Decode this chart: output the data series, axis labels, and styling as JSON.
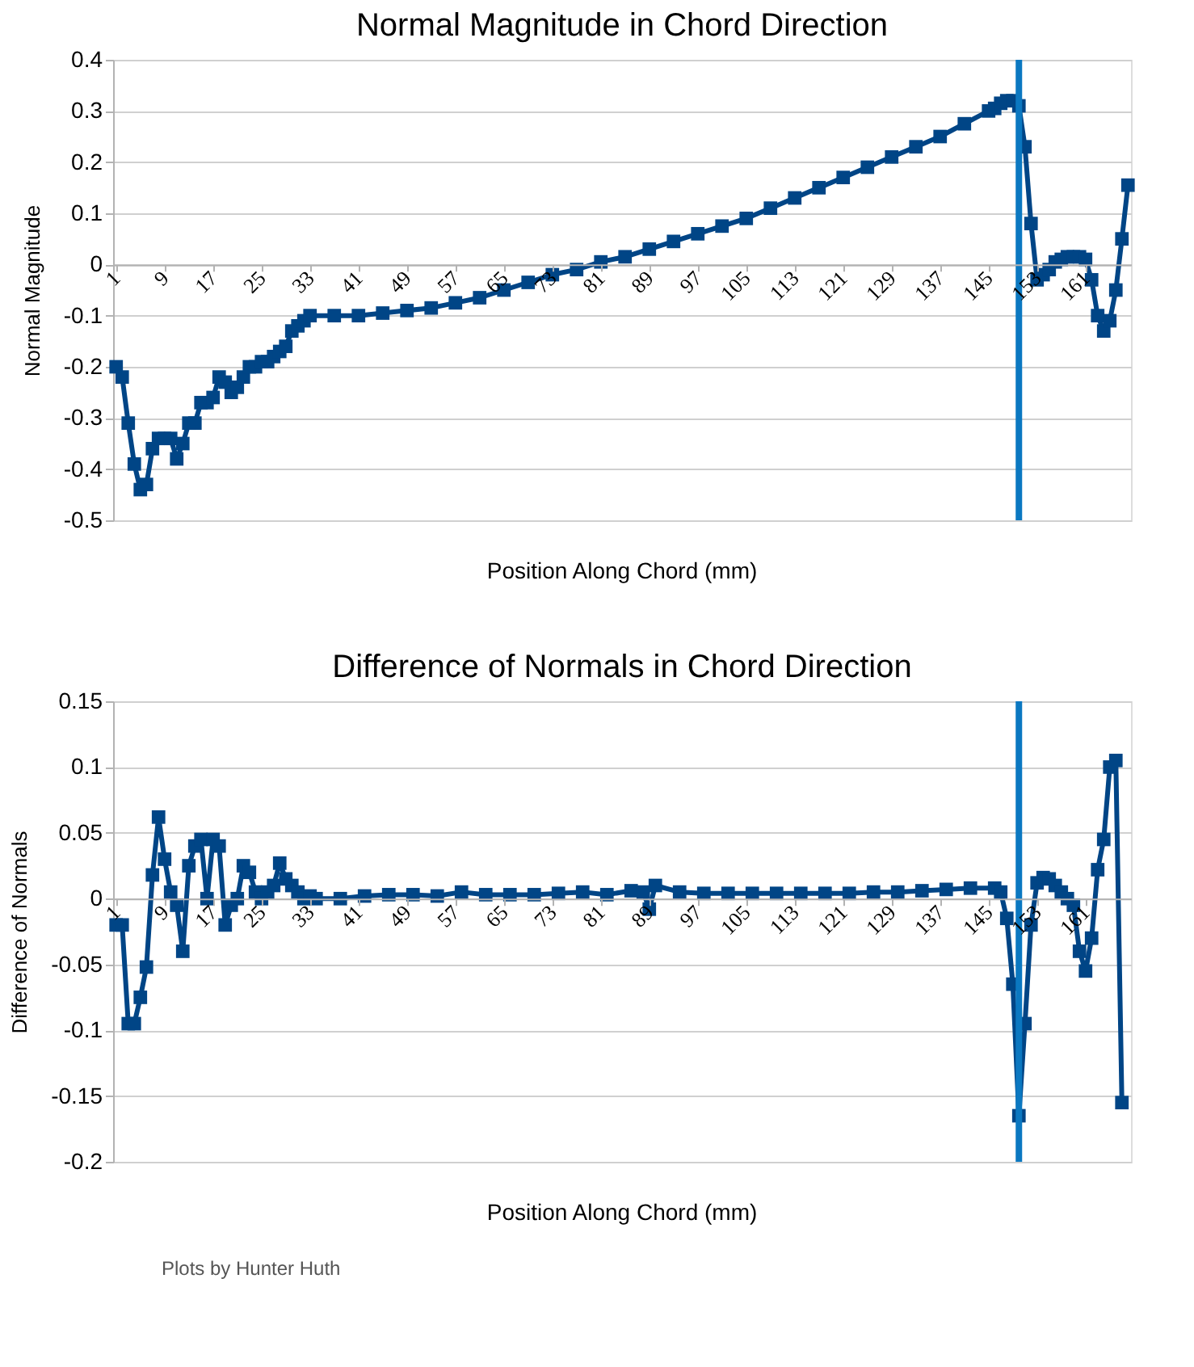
{
  "chart_data": [
    {
      "type": "line",
      "title": "Normal Magnitude in Chord Direction",
      "xlabel": "Position Along Chord (mm)",
      "ylabel": "Normal Magnitude",
      "x": [
        1,
        2,
        3,
        4,
        5,
        6,
        7,
        8,
        9,
        10,
        11,
        12,
        13,
        14,
        15,
        16,
        17,
        18,
        19,
        20,
        21,
        22,
        23,
        24,
        25,
        26,
        27,
        28,
        29,
        30,
        31,
        32,
        33,
        37,
        41,
        45,
        49,
        53,
        57,
        61,
        65,
        69,
        73,
        77,
        81,
        85,
        89,
        93,
        97,
        101,
        105,
        109,
        113,
        117,
        121,
        125,
        129,
        133,
        137,
        141,
        145,
        146,
        147,
        148,
        149,
        150,
        151,
        152,
        153,
        154,
        155,
        156,
        157,
        158,
        159,
        160,
        161,
        162,
        163,
        164,
        165,
        166,
        167,
        168
      ],
      "series": [
        {
          "color": "#004586",
          "values": [
            -0.2,
            -0.22,
            -0.31,
            -0.39,
            -0.44,
            -0.43,
            -0.36,
            -0.34,
            -0.34,
            -0.34,
            -0.38,
            -0.35,
            -0.31,
            -0.31,
            -0.27,
            -0.27,
            -0.26,
            -0.22,
            -0.23,
            -0.25,
            -0.24,
            -0.22,
            -0.2,
            -0.2,
            -0.19,
            -0.19,
            -0.18,
            -0.17,
            -0.16,
            -0.13,
            -0.12,
            -0.11,
            -0.1,
            -0.1,
            -0.1,
            -0.095,
            -0.09,
            -0.085,
            -0.075,
            -0.065,
            -0.05,
            -0.035,
            -0.02,
            -0.01,
            0.005,
            0.015,
            0.03,
            0.045,
            0.06,
            0.075,
            0.09,
            0.11,
            0.13,
            0.15,
            0.17,
            0.19,
            0.21,
            0.23,
            0.25,
            0.275,
            0.3,
            0.305,
            0.315,
            0.32,
            0.32,
            0.31,
            0.23,
            0.08,
            -0.03,
            -0.02,
            -0.01,
            0.005,
            0.01,
            0.015,
            0.015,
            0.015,
            0.01,
            -0.03,
            -0.1,
            -0.13,
            -0.11,
            -0.05,
            0.05,
            0.155
          ]
        }
      ],
      "xlim": [
        0.5,
        168.5
      ],
      "xticks": [
        1,
        9,
        17,
        25,
        33,
        41,
        49,
        57,
        65,
        73,
        81,
        89,
        97,
        105,
        113,
        121,
        129,
        137,
        145,
        153,
        161
      ],
      "ylim": [
        -0.5,
        0.4
      ],
      "yticks": [
        -0.5,
        -0.4,
        -0.3,
        -0.2,
        -0.1,
        0,
        0.1,
        0.2,
        0.3,
        0.4
      ],
      "grid": "y",
      "legend": false,
      "marker": "square",
      "line_style": "solid",
      "ref_lines": [
        {
          "axis": "x",
          "value": 150,
          "color": "#0b78c1"
        }
      ]
    },
    {
      "type": "line",
      "title": "Difference of Normals in Chord Direction",
      "xlabel": "Position Along Chord (mm)",
      "ylabel": "Difference of Normals",
      "x": [
        1,
        2,
        3,
        4,
        5,
        6,
        7,
        8,
        9,
        10,
        11,
        12,
        13,
        14,
        15,
        16,
        17,
        18,
        19,
        20,
        21,
        22,
        23,
        24,
        25,
        26,
        27,
        28,
        29,
        30,
        31,
        32,
        33,
        34,
        38,
        42,
        46,
        50,
        54,
        58,
        62,
        66,
        70,
        74,
        78,
        82,
        86,
        88,
        89,
        90,
        94,
        98,
        102,
        106,
        110,
        114,
        118,
        122,
        126,
        130,
        134,
        138,
        142,
        146,
        147,
        148,
        149,
        150,
        151,
        152,
        153,
        154,
        155,
        156,
        157,
        158,
        159,
        160,
        161,
        162,
        163,
        164,
        165,
        166,
        167
      ],
      "series": [
        {
          "color": "#004586",
          "values": [
            -0.02,
            -0.02,
            -0.095,
            -0.095,
            -0.075,
            -0.052,
            0.018,
            0.062,
            0.03,
            0.005,
            -0.005,
            -0.04,
            0.025,
            0.04,
            0.045,
            0.0,
            0.045,
            0.04,
            -0.02,
            -0.005,
            0.0,
            0.025,
            0.02,
            0.005,
            0.0,
            0.005,
            0.01,
            0.027,
            0.015,
            0.01,
            0.005,
            0.0,
            0.002,
            0.0,
            0.0,
            0.002,
            0.003,
            0.003,
            0.002,
            0.005,
            0.003,
            0.003,
            0.003,
            0.004,
            0.005,
            0.003,
            0.006,
            0.005,
            -0.008,
            0.01,
            0.005,
            0.004,
            0.004,
            0.004,
            0.004,
            0.004,
            0.004,
            0.004,
            0.005,
            0.005,
            0.006,
            0.007,
            0.008,
            0.008,
            0.005,
            -0.015,
            -0.065,
            -0.165,
            -0.095,
            -0.02,
            0.012,
            0.016,
            0.015,
            0.01,
            0.005,
            0.0,
            -0.005,
            -0.04,
            -0.055,
            -0.03,
            0.022,
            0.045,
            0.1,
            0.105,
            -0.155
          ]
        }
      ],
      "xlim": [
        0.5,
        168.5
      ],
      "xticks": [
        1,
        9,
        17,
        25,
        33,
        41,
        49,
        57,
        65,
        73,
        81,
        89,
        97,
        105,
        113,
        121,
        129,
        137,
        145,
        153,
        161
      ],
      "ylim": [
        -0.2,
        0.15
      ],
      "yticks": [
        -0.2,
        -0.15,
        -0.1,
        -0.05,
        0,
        0.05,
        0.1,
        0.15
      ],
      "grid": "y",
      "legend": false,
      "marker": "square",
      "line_style": "solid",
      "ref_lines": [
        {
          "axis": "x",
          "value": 150,
          "color": "#0b78c1"
        }
      ],
      "annotations": [
        "Plots by Hunter Huth"
      ]
    }
  ]
}
